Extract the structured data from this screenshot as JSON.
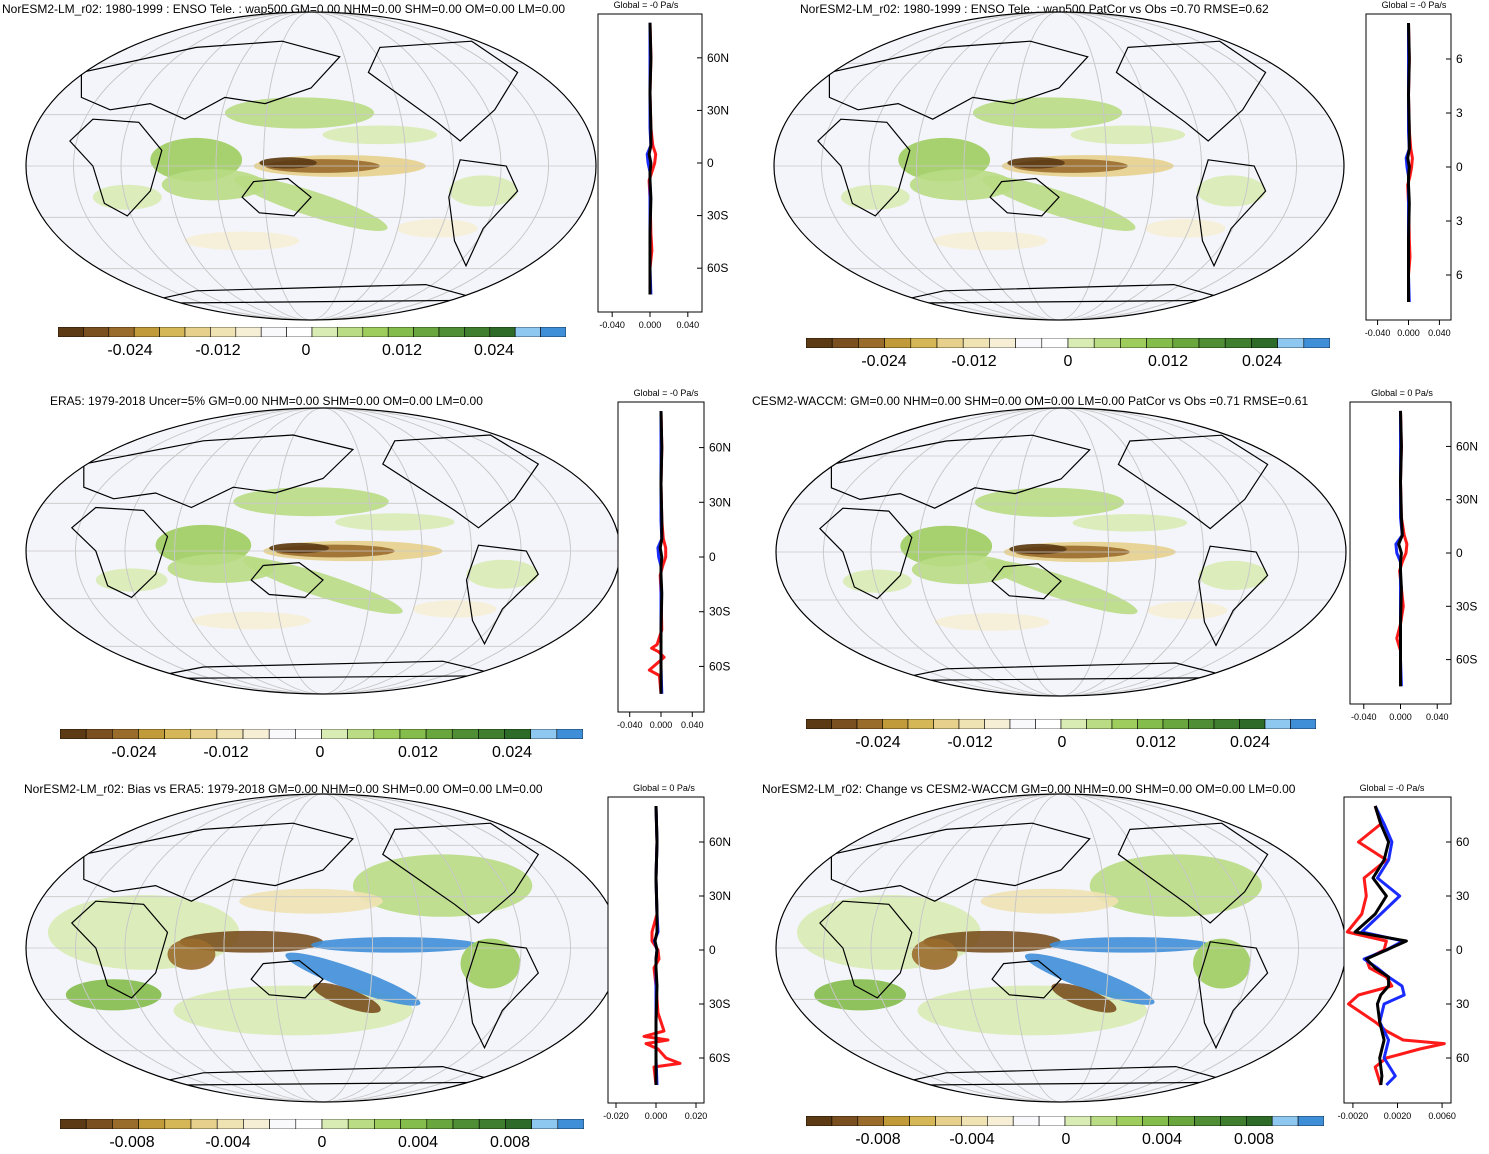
{
  "units": "Pa/s",
  "colors": {
    "palette": [
      "#5b3a14",
      "#7a5020",
      "#9a6c2c",
      "#c19a3a",
      "#d6b757",
      "#e6d08b",
      "#efe2b3",
      "#f6efd6",
      "#f9f9fc",
      "#ffffff",
      "#d9ecb4",
      "#b9dc84",
      "#9ecd5e",
      "#84bd4b",
      "#6aa63e",
      "#4f8e35",
      "#3f7d2f",
      "#2f6b28",
      "#8ec7ef",
      "#3f8fd8"
    ],
    "map_background": "#f4f5fb",
    "series_red": "#ff1a1a",
    "series_blue": "#1a2bff",
    "series_black": "#000000"
  },
  "panels": [
    {
      "id": "model",
      "title": "NorESM2-LM_r02: 1980-1999 : ENSO Tele. : wap500 GM=0.00 NHM=0.00 SHM=0.00 OM=0.00 LM=0.00",
      "zonal_title": "Global = -0 Pa/s",
      "cbar_labels": [
        "-0.024",
        "-0.012",
        "0",
        "0.012",
        "0.024"
      ],
      "chart_data": {
        "type": "line",
        "title": "Global = -0 Pa/s",
        "lat_ticks": [
          "60N",
          "30N",
          "0",
          "30S",
          "60S"
        ],
        "x_ticks": [
          "-0.040",
          "0.000",
          "0.040"
        ],
        "xlim": [
          -0.055,
          0.055
        ],
        "ylim": [
          -85,
          85
        ],
        "series": [
          {
            "name": "red",
            "color": "red",
            "lat": [
              80,
              60,
              40,
              20,
              10,
              5,
              0,
              -5,
              -10,
              -20,
              -40,
              -50,
              -60,
              -75
            ],
            "values": [
              0,
              0.001,
              0,
              0.001,
              0.003,
              0.006,
              0.005,
              0.002,
              -0.001,
              0,
              0.001,
              0.002,
              0,
              0
            ]
          },
          {
            "name": "blue",
            "color": "blue",
            "lat": [
              80,
              60,
              40,
              20,
              10,
              5,
              0,
              -5,
              -10,
              -20,
              -40,
              -60,
              -75
            ],
            "values": [
              0,
              0,
              0,
              0,
              0.001,
              -0.003,
              -0.002,
              0,
              0,
              0,
              0,
              0,
              0.001
            ]
          },
          {
            "name": "black",
            "color": "black",
            "lat": [
              80,
              60,
              40,
              20,
              10,
              5,
              0,
              -5,
              -10,
              -20,
              -40,
              -60,
              -75
            ],
            "values": [
              0,
              0.001,
              0,
              0.001,
              0.001,
              -0.001,
              0.001,
              0,
              0,
              0.001,
              0,
              0,
              0
            ]
          }
        ]
      }
    },
    {
      "id": "model_vs_obs",
      "title": "NorESM2-LM_r02: 1980-1999 : ENSO Tele. : wap500 PatCor vs Obs =0.70 RMSE=0.62",
      "zonal_title": "Global = -0 Pa/s",
      "cbar_labels": [
        "-0.024",
        "-0.012",
        "0",
        "0.012",
        "0.024"
      ],
      "chart_data": {
        "type": "line",
        "title": "Global = -0 Pa/s",
        "lat_ticks": [
          "6",
          "3",
          "0",
          "3",
          "6"
        ],
        "x_ticks": [
          "-0.040",
          "0.000",
          "0.040"
        ],
        "xlim": [
          -0.055,
          0.055
        ],
        "ylim": [
          -85,
          85
        ],
        "series": [
          {
            "name": "red",
            "color": "red",
            "lat": [
              80,
              60,
              40,
              20,
              10,
              5,
              0,
              -5,
              -10,
              -20,
              -40,
              -50,
              -60,
              -75
            ],
            "values": [
              0,
              0.001,
              0,
              0.001,
              0.003,
              0.005,
              0.004,
              0.002,
              -0.001,
              0,
              0.001,
              0.002,
              0,
              0
            ]
          },
          {
            "name": "blue",
            "color": "blue",
            "lat": [
              80,
              60,
              40,
              20,
              10,
              5,
              0,
              -5,
              -10,
              -20,
              -40,
              -60,
              -75
            ],
            "values": [
              0,
              0,
              0,
              0,
              0.001,
              -0.003,
              -0.002,
              0,
              0,
              0,
              0,
              0,
              0.001
            ]
          },
          {
            "name": "black",
            "color": "black",
            "lat": [
              80,
              60,
              40,
              20,
              10,
              5,
              0,
              -5,
              -10,
              -20,
              -40,
              -60,
              -75
            ],
            "values": [
              0,
              0.001,
              0,
              0.001,
              0.001,
              -0.001,
              0.001,
              0,
              0,
              0.001,
              0,
              0,
              0
            ]
          }
        ]
      }
    },
    {
      "id": "obs",
      "title": "ERA5: 1979-2018 Uncer=5% GM=0.00 NHM=0.00 SHM=0.00 OM=0.00 LM=0.00",
      "zonal_title": "Global = -0 Pa/s",
      "cbar_labels": [
        "-0.024",
        "-0.012",
        "0",
        "0.012",
        "0.024"
      ],
      "chart_data": {
        "type": "line",
        "title": "Global = -0 Pa/s",
        "lat_ticks": [
          "60N",
          "30N",
          "0",
          "30S",
          "60S"
        ],
        "x_ticks": [
          "-0.040",
          "0.000",
          "0.040"
        ],
        "xlim": [
          -0.055,
          0.055
        ],
        "ylim": [
          -85,
          85
        ],
        "series": [
          {
            "name": "red",
            "color": "red",
            "lat": [
              80,
              60,
              40,
              20,
              10,
              5,
              0,
              -5,
              -10,
              -20,
              -40,
              -48,
              -50,
              -52,
              -55,
              -62,
              -65,
              -75
            ],
            "values": [
              0,
              0.001,
              0,
              0.001,
              0.003,
              0.006,
              0.006,
              0.002,
              -0.001,
              0,
              0.001,
              -0.005,
              -0.012,
              -0.003,
              0.004,
              -0.015,
              -0.002,
              0
            ]
          },
          {
            "name": "blue",
            "color": "blue",
            "lat": [
              80,
              60,
              40,
              20,
              10,
              5,
              0,
              -5,
              -10,
              -20,
              -40,
              -60,
              -75
            ],
            "values": [
              0,
              0,
              0,
              0,
              0.001,
              -0.004,
              -0.003,
              0,
              0,
              0,
              0,
              0,
              0.001
            ]
          },
          {
            "name": "black",
            "color": "black",
            "lat": [
              80,
              60,
              40,
              20,
              10,
              5,
              0,
              -5,
              -10,
              -20,
              -40,
              -60,
              -75
            ],
            "values": [
              0,
              0.001,
              0,
              0.001,
              0.001,
              -0.001,
              0.001,
              0,
              0,
              0.001,
              0,
              0,
              0
            ]
          }
        ]
      }
    },
    {
      "id": "other_model",
      "title": "CESM2-WACCM: GM=0.00 NHM=0.00 SHM=0.00 OM=0.00 LM=0.00 PatCor vs Obs =0.71 RMSE=0.61",
      "zonal_title": "Global = 0 Pa/s",
      "cbar_labels": [
        "-0.024",
        "-0.012",
        "0",
        "0.012",
        "0.024"
      ],
      "chart_data": {
        "type": "line",
        "title": "Global = 0 Pa/s",
        "lat_ticks": [
          "60N",
          "30N",
          "0",
          "30S",
          "60S"
        ],
        "x_ticks": [
          "-0.040",
          "0.000",
          "0.040"
        ],
        "xlim": [
          -0.055,
          0.055
        ],
        "ylim": [
          -85,
          85
        ],
        "series": [
          {
            "name": "red",
            "color": "red",
            "lat": [
              80,
              60,
              40,
              20,
              10,
              5,
              0,
              -5,
              -10,
              -20,
              -30,
              -40,
              -48,
              -55,
              -75
            ],
            "values": [
              0,
              0.001,
              0,
              0.001,
              0.004,
              0.007,
              0.006,
              0.002,
              -0.001,
              0.001,
              0.003,
              0,
              -0.004,
              0,
              0
            ]
          },
          {
            "name": "blue",
            "color": "blue",
            "lat": [
              80,
              60,
              40,
              20,
              10,
              5,
              0,
              -5,
              -10,
              -20,
              -40,
              -60,
              -75
            ],
            "values": [
              0,
              0,
              0,
              0,
              0.002,
              -0.005,
              -0.004,
              0,
              0,
              0,
              0,
              0,
              0.001
            ]
          },
          {
            "name": "black",
            "color": "black",
            "lat": [
              80,
              60,
              40,
              20,
              10,
              5,
              0,
              -5,
              -10,
              -20,
              -40,
              -60,
              -75
            ],
            "values": [
              0,
              0.001,
              0,
              0.001,
              0.002,
              -0.002,
              0.001,
              0,
              0,
              0.001,
              0,
              0,
              0
            ]
          }
        ]
      }
    },
    {
      "id": "bias",
      "title": "NorESM2-LM_r02: Bias vs ERA5: 1979-2018 GM=0.00 NHM=0.00 SHM=0.00 OM=0.00 LM=0.00",
      "zonal_title": "Global = 0 Pa/s",
      "cbar_labels": [
        "-0.008",
        "-0.004",
        "0",
        "0.004",
        "0.008"
      ],
      "chart_data": {
        "type": "line",
        "title": "Global = 0 Pa/s",
        "lat_ticks": [
          "60N",
          "30N",
          "0",
          "30S",
          "60S"
        ],
        "x_ticks": [
          "-0.020",
          "0.000",
          "0.020"
        ],
        "xlim": [
          -0.024,
          0.024
        ],
        "ylim": [
          -85,
          85
        ],
        "series": [
          {
            "name": "red",
            "color": "red",
            "lat": [
              80,
              60,
              40,
              20,
              10,
              5,
              0,
              -5,
              -10,
              -20,
              -35,
              -45,
              -48,
              -50,
              -52,
              -55,
              -60,
              -63,
              -65,
              -75
            ],
            "values": [
              0,
              0.0005,
              0,
              0.0005,
              -0.002,
              -0.002,
              0.001,
              0.0015,
              -0.001,
              0,
              0.001,
              0.004,
              -0.006,
              0.006,
              -0.005,
              0.001,
              0.005,
              0.012,
              -0.001,
              0
            ]
          },
          {
            "name": "blue",
            "color": "blue",
            "lat": [
              80,
              60,
              40,
              20,
              10,
              5,
              0,
              -5,
              -10,
              -20,
              -40,
              -60,
              -75
            ],
            "values": [
              0,
              0.0005,
              0,
              0.0005,
              0.001,
              -0.0008,
              0.0005,
              0,
              0,
              0,
              0,
              0,
              0.0005
            ]
          },
          {
            "name": "black",
            "color": "black",
            "lat": [
              80,
              60,
              40,
              20,
              10,
              5,
              0,
              -5,
              -10,
              -20,
              -40,
              -60,
              -75
            ],
            "values": [
              0,
              0.0005,
              0,
              0.0005,
              0.0005,
              -0.0005,
              0.0005,
              0,
              0,
              0.0005,
              0,
              0,
              0
            ]
          }
        ]
      }
    },
    {
      "id": "change",
      "title": "NorESM2-LM_r02: Change vs CESM2-WACCM GM=0.00 NHM=0.00 SHM=0.00 OM=0.00 LM=0.00",
      "zonal_title": "Global = -0 Pa/s",
      "cbar_labels": [
        "-0.008",
        "-0.004",
        "0",
        "0.004",
        "0.008"
      ],
      "chart_data": {
        "type": "line",
        "title": "Global = -0 Pa/s",
        "lat_ticks": [
          "60",
          "30",
          "0",
          "30",
          "60"
        ],
        "x_ticks": [
          "-0.0020",
          "0.0020",
          "0.0060"
        ],
        "xlim": [
          -0.0028,
          0.0068
        ],
        "ylim": [
          -85,
          85
        ],
        "series": [
          {
            "name": "red",
            "color": "red",
            "lat": [
              80,
              70,
              60,
              50,
              40,
              30,
              20,
              10,
              5,
              0,
              -5,
              -10,
              -15,
              -20,
              -25,
              -30,
              -40,
              -45,
              -50,
              -52,
              -55,
              -60,
              -65,
              -75
            ],
            "values": [
              0,
              0.0005,
              -0.0015,
              0.001,
              -0.001,
              -0.0008,
              -0.0012,
              -0.0025,
              0.001,
              0.0008,
              -0.0008,
              -0.0005,
              0.001,
              0.0015,
              -0.0015,
              -0.0024,
              0.0,
              0.001,
              0.0025,
              0.0062,
              0.004,
              0.001,
              0,
              0.0005
            ]
          },
          {
            "name": "blue",
            "color": "blue",
            "lat": [
              80,
              70,
              60,
              50,
              40,
              30,
              20,
              10,
              5,
              0,
              -5,
              -10,
              -15,
              -20,
              -25,
              -30,
              -40,
              -50,
              -60,
              -70,
              -75
            ],
            "values": [
              0,
              0.0008,
              0.0015,
              0.0012,
              0.0002,
              0.0022,
              0.0005,
              -0.0012,
              0.0025,
              0.001,
              -0.001,
              0.0002,
              0.0012,
              0.0024,
              0.0026,
              0.0008,
              0.0004,
              0.0012,
              0.0008,
              0.0018,
              0.001
            ]
          },
          {
            "name": "black",
            "color": "black",
            "lat": [
              80,
              70,
              60,
              50,
              40,
              30,
              20,
              10,
              5,
              0,
              -5,
              -10,
              -15,
              -20,
              -25,
              -30,
              -40,
              -50,
              -60,
              -70,
              -75
            ],
            "values": [
              0,
              0.0005,
              0.0012,
              0.0008,
              -0.0002,
              0.001,
              0,
              -0.0018,
              0.0028,
              0.001,
              -0.0008,
              0,
              0.0012,
              0.0012,
              0.0005,
              0.0002,
              0.0004,
              0.0008,
              0.0004,
              0.0006,
              0.0005
            ]
          }
        ]
      }
    }
  ]
}
